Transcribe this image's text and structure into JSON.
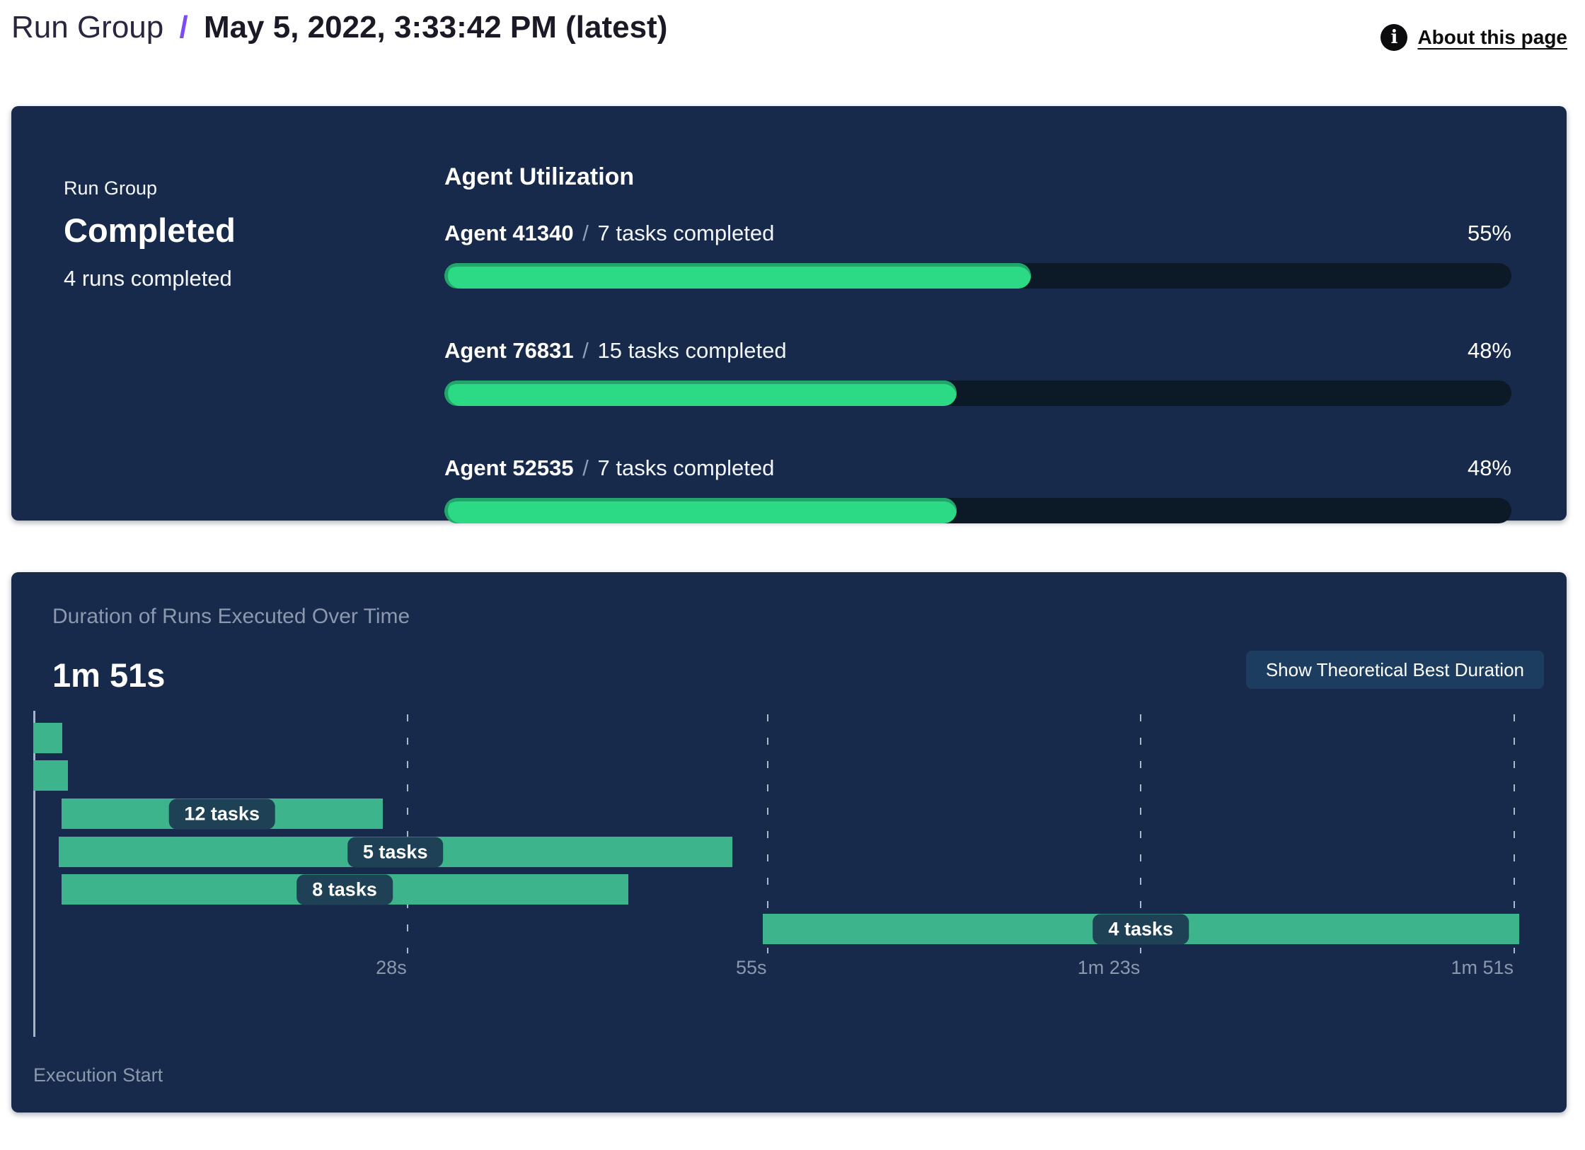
{
  "header": {
    "breadcrumb": "Run Group",
    "separator": "/",
    "title": "May 5, 2022, 3:33:42 PM (latest)",
    "about_link": "About this page",
    "info_icon": "info-icon"
  },
  "summary_panel": {
    "label": "Run Group",
    "status": "Completed",
    "sub": "4 runs completed",
    "utilization": {
      "title": "Agent Utilization",
      "agents": [
        {
          "name": "Agent 41340",
          "separator": "/",
          "tasks": "7 tasks completed",
          "percent": "55%",
          "value": 55
        },
        {
          "name": "Agent 76831",
          "separator": "/",
          "tasks": "15 tasks completed",
          "percent": "48%",
          "value": 48
        },
        {
          "name": "Agent 52535",
          "separator": "/",
          "tasks": "7 tasks completed",
          "percent": "48%",
          "value": 48
        }
      ]
    }
  },
  "duration_panel": {
    "title": "Duration of Runs Executed Over Time",
    "total_duration": "1m 51s",
    "button_label": "Show Theoretical Best Duration",
    "execution_start_label": "Execution Start"
  },
  "chart_data": {
    "type": "bar",
    "subtype": "gantt-timeline",
    "title": "Duration of Runs Executed Over Time",
    "xlabel": "Execution Start",
    "xmax_seconds": 111,
    "grid": true,
    "ticks": [
      {
        "t": 28,
        "label": "28s"
      },
      {
        "t": 55,
        "label": "55s"
      },
      {
        "t": 83,
        "label": "1m 23s"
      },
      {
        "t": 111,
        "label": "1m 51s"
      }
    ],
    "runs": [
      {
        "start": 0,
        "end": 2.2,
        "label": null
      },
      {
        "start": 0,
        "end": 2.6,
        "label": null
      },
      {
        "start": 2.1,
        "end": 26.2,
        "label": "12 tasks"
      },
      {
        "start": 1.9,
        "end": 52.4,
        "label": "5 tasks"
      },
      {
        "start": 2.1,
        "end": 44.6,
        "label": "8 tasks"
      },
      {
        "start": 54.7,
        "end": 111.4,
        "label": "4 tasks"
      }
    ]
  },
  "colors": {
    "panel_bg": "#172A4B",
    "track_bg": "#0C1927",
    "progress_green": "#2CD985",
    "progress_green_edge": "#21A56B",
    "gantt_teal": "#3DB48C",
    "pill_bg": "#1E4156",
    "muted_text": "#8B98AD",
    "accent_purple": "#7B4BF5",
    "button_bg": "#1D3D60"
  }
}
